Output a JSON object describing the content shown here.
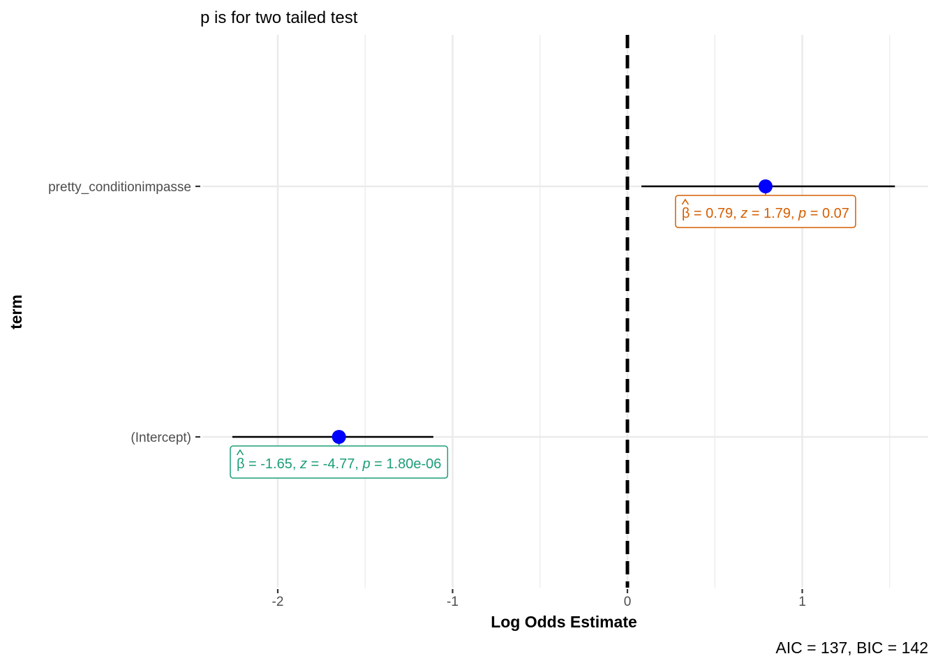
{
  "chart_data": {
    "type": "scatter",
    "title": "",
    "subtitle": "p is for two tailed test",
    "xlabel": "Log Odds Estimate",
    "ylabel": "term",
    "caption": "AIC = 137, BIC = 142",
    "xlim": [
      -2.6,
      1.72
    ],
    "x_ticks": [
      -2,
      -1,
      0,
      1
    ],
    "x_tick_labels": [
      "-2",
      "-1",
      "0",
      "1"
    ],
    "reference_line": 0,
    "grid": true,
    "point_color": "#0000ff",
    "terms": [
      {
        "term": "pretty_conditionimpasse",
        "estimate": 0.79,
        "ci_low": 0.08,
        "ci_high": 1.53,
        "label": {
          "beta": "= 0.79, ",
          "z": "= 1.79, ",
          "p": "= 0.07"
        },
        "label_color": "#d55e00"
      },
      {
        "term": "(Intercept)",
        "estimate": -1.65,
        "ci_low": -2.26,
        "ci_high": -1.11,
        "label": {
          "beta": "= -1.65, ",
          "z": "= -4.77, ",
          "p": "= 1.80e-06"
        },
        "label_color": "#1b9e77"
      }
    ]
  }
}
